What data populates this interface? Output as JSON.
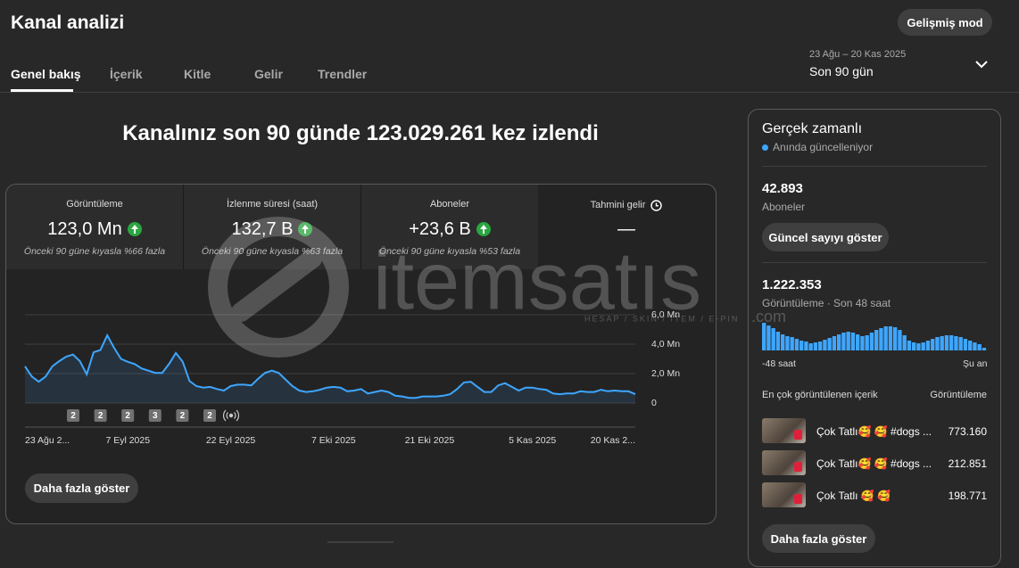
{
  "header": {
    "title": "Kanal analizi",
    "advanced_button": "Gelişmiş mod"
  },
  "tabs": [
    "Genel bakış",
    "İçerik",
    "Kitle",
    "Gelir",
    "Trendler"
  ],
  "date_range": {
    "dates": "23 Ağu – 20 Kas 2025",
    "label": "Son 90 gün"
  },
  "headline": "Kanalınız son 90 günde 123.029.261 kez izlendi",
  "metrics": [
    {
      "label": "Görüntüleme",
      "value": "123,0 Mn",
      "note": "Önceki 90 güne kıyasla %66 fazla"
    },
    {
      "label": "İzlenme süresi (saat)",
      "value": "132,7 B",
      "note": "Önceki 90 güne kıyasla %63 fazla"
    },
    {
      "label": "Aboneler",
      "value": "+23,6 B",
      "note": "Önceki 90 güne kıyasla %53 fazla"
    },
    {
      "label": "Tahmini gelir",
      "value": "—"
    }
  ],
  "chart_data": {
    "type": "line",
    "color": "#3ea6ff",
    "categories": [
      "23 Ağu 2...",
      null,
      null,
      null,
      null,
      null,
      null,
      null,
      null,
      null,
      null,
      null,
      null,
      null,
      null,
      "7 Eyl 2025",
      null,
      null,
      null,
      null,
      null,
      null,
      null,
      null,
      null,
      null,
      null,
      null,
      null,
      null,
      "22 Eyl 2025",
      null,
      null,
      null,
      null,
      null,
      null,
      null,
      null,
      null,
      null,
      null,
      null,
      null,
      null,
      "7 Eki 2025",
      null,
      null,
      null,
      null,
      null,
      null,
      null,
      null,
      null,
      null,
      null,
      null,
      null,
      "21 Eki 2025",
      null,
      null,
      null,
      null,
      null,
      null,
      null,
      null,
      null,
      null,
      null,
      null,
      null,
      null,
      "5 Kas 2025",
      null,
      null,
      null,
      null,
      null,
      null,
      null,
      null,
      null,
      null,
      null,
      null,
      null,
      null,
      "20 Kas 2..."
    ],
    "values": [
      2.5,
      1.8,
      1.45,
      1.8,
      2.5,
      2.85,
      3.15,
      3.3,
      2.85,
      1.95,
      3.45,
      3.6,
      4.6,
      3.75,
      3.0,
      2.8,
      2.65,
      2.35,
      2.2,
      2.05,
      2.05,
      2.65,
      3.4,
      2.8,
      1.5,
      1.15,
      1.05,
      1.1,
      0.95,
      0.85,
      1.15,
      1.25,
      1.25,
      1.2,
      1.65,
      2.05,
      2.2,
      2.05,
      1.6,
      1.15,
      0.85,
      0.75,
      0.8,
      0.9,
      1.05,
      1.1,
      1.05,
      0.8,
      0.85,
      0.95,
      0.65,
      0.75,
      0.85,
      0.75,
      0.5,
      0.45,
      0.35,
      0.35,
      0.45,
      0.45,
      0.45,
      0.5,
      0.6,
      0.95,
      1.4,
      1.45,
      1.1,
      0.75,
      0.75,
      1.2,
      1.35,
      1.1,
      0.85,
      1.05,
      1.05,
      0.95,
      0.9,
      0.65,
      0.6,
      0.65,
      0.65,
      0.8,
      0.75,
      0.75,
      0.9,
      0.8,
      0.85,
      0.8,
      0.8,
      0.6
    ],
    "ylim": [
      0,
      6
    ],
    "yticks": [
      0,
      {
        "value": 2,
        "label": "2,0 Mn"
      },
      {
        "value": 4,
        "label": "4,0 Mn"
      },
      {
        "value": 6,
        "label": "6,0 Mn"
      }
    ],
    "grid": true,
    "uploads": [
      "2",
      "2",
      "2",
      "3",
      "2",
      "2"
    ]
  },
  "more_button": "Daha fazla göster",
  "realtime": {
    "title": "Gerçek zamanlı",
    "status": "Anında güncelleniyor",
    "subscribers": "42.893",
    "subscribers_label": "Aboneler",
    "subscribers_button": "Güncel sayıyı göster",
    "views": "1.222.353",
    "views_label": "Görüntüleme · Son 48 saat",
    "chart": {
      "type": "bar",
      "color": "#3ea6ff",
      "values": [
        49000,
        44200,
        39500,
        33200,
        28400,
        25300,
        23700,
        20500,
        17400,
        15800,
        12600,
        14200,
        15800,
        19000,
        22100,
        25300,
        28400,
        31600,
        33200,
        31600,
        28400,
        25300,
        26900,
        31600,
        36300,
        39500,
        42700,
        42700,
        41100,
        36300,
        26900,
        17400,
        14200,
        12600,
        14200,
        17400,
        20500,
        23700,
        25300,
        26900,
        26900,
        25300,
        23700,
        20500,
        17400,
        14200,
        11100,
        4700
      ],
      "start_label": "-48 saat",
      "end_label": "Şu an"
    },
    "top_content_label": "En çok görüntülenen içerik",
    "top_content_views_label": "Görüntüleme",
    "top_content": [
      {
        "title": "Çok Tatlı🥰 🥰  #dogs ...",
        "views": "773.160"
      },
      {
        "title": "Çok Tatlı🥰 🥰  #dogs ...",
        "views": "212.851"
      },
      {
        "title": "Çok Tatlı 🥰 🥰",
        "views": "198.771"
      }
    ],
    "more_button": "Daha fazla göster"
  },
  "watermark": {
    "brand": "itemsatıs",
    "tagline": "HESAP / SKIN / İTEM / E-PIN",
    "domain": ".com"
  }
}
